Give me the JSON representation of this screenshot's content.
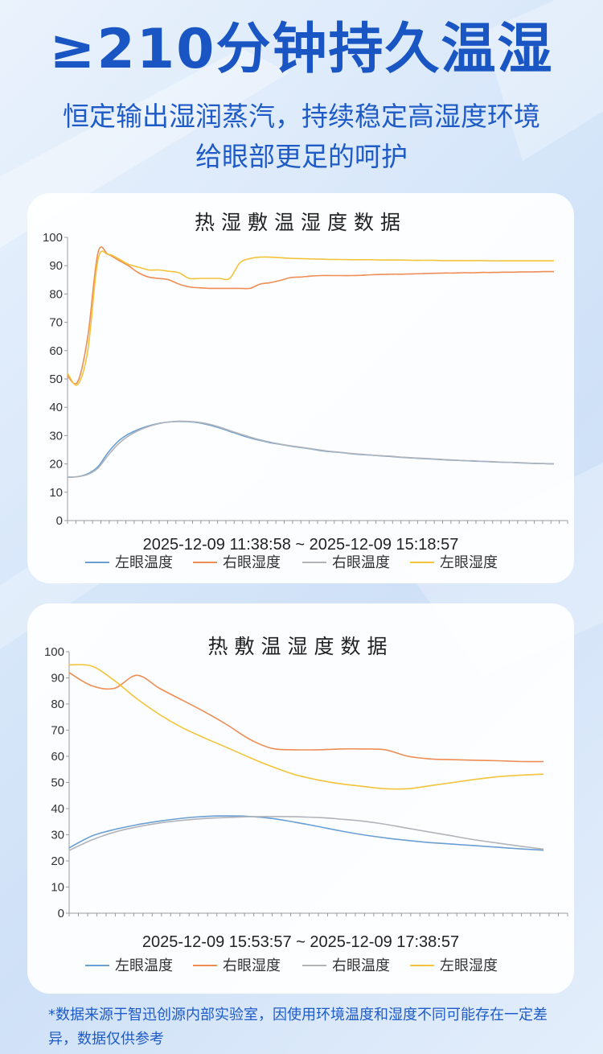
{
  "header": {
    "title": "≥210分钟持久温湿",
    "subtitle_line1": "恒定输出湿润蒸汽，持续稳定高湿度环境",
    "subtitle_line2": "给眼部更足的呵护"
  },
  "footnote": {
    "line1": "*数据来源于智迅创源内部实验室，因使用环境温度和湿度不同可能存在一定差",
    "line2": "异，数据仅供参考"
  },
  "colors": {
    "title": "#1a55c4",
    "text": "#1e5bc6",
    "left_eye_1": "#6a9fd4",
    "right_eye_1": "#ee8d55",
    "right_eye_2": "#b0b4ba",
    "left_eye_2": "#f3c33a"
  },
  "chart_data": [
    {
      "type": "line",
      "title": "热湿敷温湿度数据",
      "xlabel": "2025-12-09 11:38:58 ~ 2025-12-09 15:18:57",
      "ylim": [
        0,
        100
      ],
      "yticks": [
        "0",
        "10",
        "20",
        "30",
        "40",
        "50",
        "60",
        "70",
        "80",
        "90",
        "100"
      ],
      "x_samples": 49,
      "grid": false,
      "legend": "bottom",
      "series": [
        {
          "name": "左眼温度",
          "color": "#6a9fd4",
          "values": [
            15.3,
            15.5,
            16.5,
            19,
            24,
            28,
            30.5,
            32.2,
            33.4,
            34.3,
            34.8,
            35,
            34.9,
            34.5,
            33.7,
            32.7,
            31.5,
            30.3,
            29.2,
            28.3,
            27.5,
            26.9,
            26.3,
            25.8,
            25.3,
            24.7,
            24.3,
            24,
            23.6,
            23.3,
            23.1,
            22.8,
            22.6,
            22.3,
            22.1,
            21.9,
            21.7,
            21.5,
            21.3,
            21.2,
            21,
            20.9,
            20.7,
            20.6,
            20.5,
            20.3,
            20.2,
            20.1,
            20
          ]
        },
        {
          "name": "右眼湿度",
          "color": "#ee8d55",
          "values": [
            51,
            49,
            65,
            94.5,
            94,
            92,
            90,
            87.5,
            86,
            85.5,
            85,
            83.5,
            82.5,
            82.2,
            82,
            82,
            82,
            82,
            82,
            83.5,
            84,
            84.8,
            85.8,
            86,
            86.3,
            86.5,
            86.5,
            86.5,
            86.5,
            86.6,
            86.8,
            86.9,
            87,
            87,
            87.1,
            87.2,
            87.3,
            87.4,
            87.4,
            87.5,
            87.5,
            87.6,
            87.6,
            87.7,
            87.7,
            87.8,
            87.8,
            87.9,
            87.9
          ]
        },
        {
          "name": "右眼温度",
          "color": "#b0b4ba",
          "values": [
            15.3,
            15.5,
            16.3,
            18.5,
            23,
            27,
            29.8,
            31.8,
            33.2,
            34.2,
            34.8,
            35.1,
            35,
            34.7,
            34,
            33,
            31.8,
            30.6,
            29.5,
            28.5,
            27.7,
            27,
            26.4,
            25.9,
            25.4,
            24.9,
            24.4,
            24.1,
            23.7,
            23.4,
            23.1,
            22.9,
            22.7,
            22.4,
            22.2,
            22,
            21.8,
            21.6,
            21.4,
            21.2,
            21.1,
            20.9,
            20.8,
            20.6,
            20.5,
            20.4,
            20.2,
            20.1,
            20
          ]
        },
        {
          "name": "左眼湿度",
          "color": "#f3c33a",
          "values": [
            52,
            48,
            60,
            92,
            94,
            92.5,
            90.5,
            89.5,
            88.5,
            88.5,
            88,
            87.5,
            85.5,
            85.5,
            85.5,
            85.5,
            85.5,
            91,
            92.5,
            93,
            93,
            92.8,
            92.6,
            92.5,
            92.4,
            92.3,
            92.2,
            92.2,
            92.1,
            92.1,
            92.1,
            92,
            92,
            92,
            91.9,
            91.9,
            91.9,
            91.8,
            91.8,
            91.8,
            91.8,
            91.8,
            91.7,
            91.7,
            91.7,
            91.7,
            91.7,
            91.7,
            91.7
          ]
        }
      ]
    },
    {
      "type": "line",
      "title": "热敷温湿度数据",
      "xlabel": "2025-12-09 15:53:57 ~ 2025-12-09 17:38:57",
      "ylim": [
        0,
        100
      ],
      "yticks": [
        "0",
        "10",
        "20",
        "30",
        "40",
        "50",
        "60",
        "70",
        "80",
        "90",
        "100"
      ],
      "x_samples": 22,
      "grid": false,
      "legend": "bottom",
      "series": [
        {
          "name": "左眼温度",
          "color": "#6a9fd4",
          "values": [
            25,
            29.5,
            32,
            33.8,
            35.2,
            36.3,
            37,
            37.2,
            37,
            36.2,
            34.8,
            33.2,
            31.5,
            30,
            28.8,
            27.8,
            27,
            26.4,
            25.8,
            25.2,
            24.6,
            24.1
          ]
        },
        {
          "name": "右眼湿度",
          "color": "#ee8d55",
          "values": [
            92,
            87,
            86,
            91,
            86,
            81.5,
            77,
            72,
            66.5,
            63,
            62.5,
            62.5,
            62.8,
            62.8,
            62.5,
            60,
            59,
            58.7,
            58.5,
            58.3,
            58,
            58
          ]
        },
        {
          "name": "右眼温度",
          "color": "#b0b4ba",
          "values": [
            24,
            28,
            31,
            33,
            34.5,
            35.5,
            36.2,
            36.6,
            36.9,
            37,
            36.9,
            36.6,
            36,
            35.2,
            34,
            32.5,
            31,
            29.5,
            28,
            26.8,
            25.6,
            24.5
          ]
        },
        {
          "name": "左眼湿度",
          "color": "#f3c33a",
          "values": [
            95,
            94.5,
            89,
            82,
            76,
            71,
            67,
            63.3,
            59.5,
            56,
            53,
            51,
            49.5,
            48.5,
            47.6,
            47.6,
            48.8,
            50,
            51.2,
            52.2,
            52.8,
            53.2
          ]
        }
      ]
    }
  ]
}
